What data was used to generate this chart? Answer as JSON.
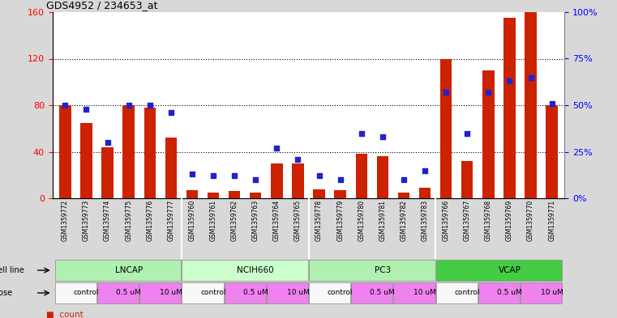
{
  "title": "GDS4952 / 234653_at",
  "samples": [
    "GSM1359772",
    "GSM1359773",
    "GSM1359774",
    "GSM1359775",
    "GSM1359776",
    "GSM1359777",
    "GSM1359760",
    "GSM1359761",
    "GSM1359762",
    "GSM1359763",
    "GSM1359764",
    "GSM1359765",
    "GSM1359778",
    "GSM1359779",
    "GSM1359780",
    "GSM1359781",
    "GSM1359782",
    "GSM1359783",
    "GSM1359766",
    "GSM1359767",
    "GSM1359768",
    "GSM1359769",
    "GSM1359770",
    "GSM1359771"
  ],
  "counts": [
    80,
    65,
    44,
    80,
    78,
    52,
    7,
    5,
    6,
    5,
    30,
    30,
    8,
    7,
    38,
    36,
    5,
    9,
    120,
    32,
    110,
    155,
    160,
    80
  ],
  "percentile_ranks": [
    50,
    48,
    30,
    50,
    50,
    46,
    13,
    12,
    12,
    10,
    27,
    21,
    12,
    10,
    35,
    33,
    10,
    15,
    57,
    35,
    57,
    63,
    65,
    51
  ],
  "cell_lines": [
    {
      "label": "LNCAP",
      "start": 0,
      "end": 6,
      "color": "#b0f0b0"
    },
    {
      "label": "NCIH660",
      "start": 6,
      "end": 12,
      "color": "#ccffcc"
    },
    {
      "label": "PC3",
      "start": 12,
      "end": 18,
      "color": "#b0f0b0"
    },
    {
      "label": "VCAP",
      "start": 18,
      "end": 24,
      "color": "#44cc44"
    }
  ],
  "dose_groups": [
    {
      "start": 0,
      "end": 2,
      "label": "control",
      "color": "#f8f8f8"
    },
    {
      "start": 2,
      "end": 4,
      "label": "0.5 uM",
      "color": "#ee82ee"
    },
    {
      "start": 4,
      "end": 6,
      "label": "10 uM",
      "color": "#ee82ee"
    },
    {
      "start": 6,
      "end": 8,
      "label": "control",
      "color": "#f8f8f8"
    },
    {
      "start": 8,
      "end": 10,
      "label": "0.5 uM",
      "color": "#ee82ee"
    },
    {
      "start": 10,
      "end": 12,
      "label": "10 uM",
      "color": "#ee82ee"
    },
    {
      "start": 12,
      "end": 14,
      "label": "control",
      "color": "#f8f8f8"
    },
    {
      "start": 14,
      "end": 16,
      "label": "0.5 uM",
      "color": "#ee82ee"
    },
    {
      "start": 16,
      "end": 18,
      "label": "10 uM",
      "color": "#ee82ee"
    },
    {
      "start": 18,
      "end": 20,
      "label": "control",
      "color": "#f8f8f8"
    },
    {
      "start": 20,
      "end": 22,
      "label": "0.5 uM",
      "color": "#ee82ee"
    },
    {
      "start": 22,
      "end": 24,
      "label": "10 uM",
      "color": "#ee82ee"
    }
  ],
  "bar_color": "#CC2200",
  "dot_color": "#2222CC",
  "ylim_left": [
    0,
    160
  ],
  "ylim_right": [
    0,
    100
  ],
  "yticks_left": [
    0,
    40,
    80,
    120,
    160
  ],
  "yticks_right": [
    0,
    25,
    50,
    75,
    100
  ],
  "ytick_labels_right": [
    "0%",
    "25%",
    "50%",
    "75%",
    "100%"
  ],
  "bg_color": "#d8d8d8",
  "plot_bg": "#ffffff",
  "xticklabel_bg": "#c8c8c8",
  "legend_count_color": "#CC2200",
  "legend_pct_color": "#2222CC"
}
